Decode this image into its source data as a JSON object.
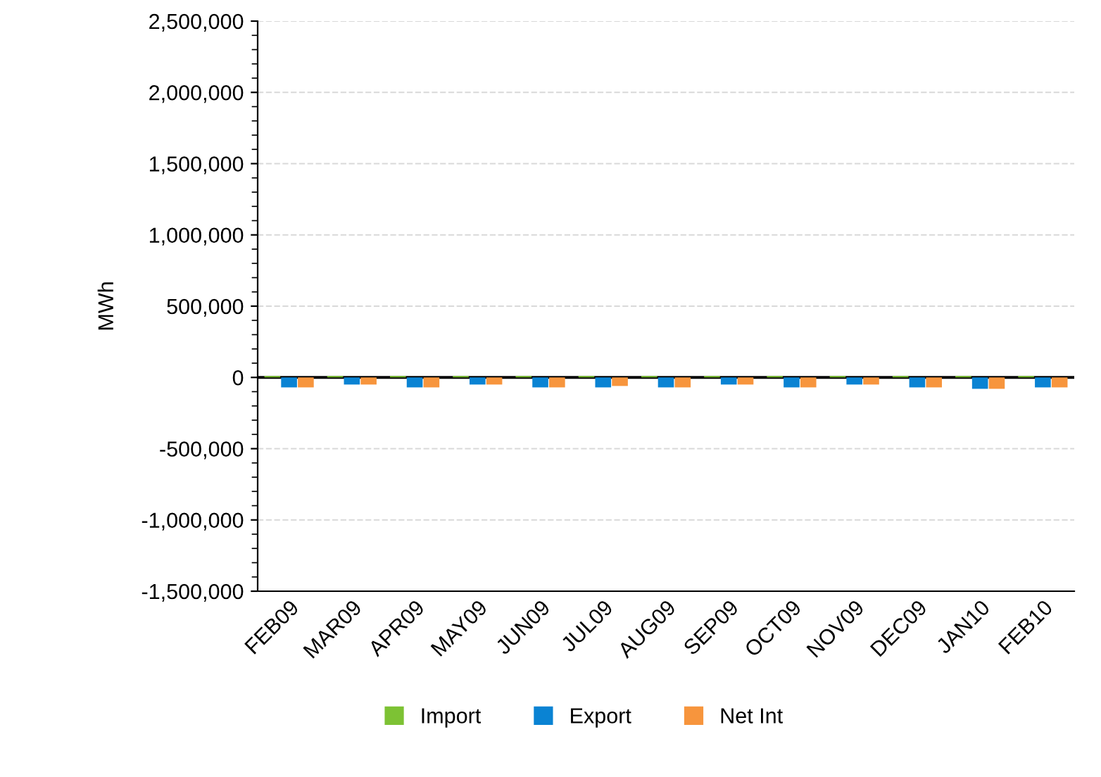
{
  "chart_data": {
    "type": "bar",
    "ylabel": "MWh",
    "categories": [
      "FEB09",
      "MAR09",
      "APR09",
      "MAY09",
      "JUN09",
      "JUL09",
      "AUG09",
      "SEP09",
      "OCT09",
      "NOV09",
      "DEC09",
      "JAN10",
      "FEB10"
    ],
    "series": [
      {
        "name": "Import",
        "color": "#7dc234",
        "values": [
          10000,
          10000,
          10000,
          10000,
          10000,
          10000,
          10000,
          10000,
          10000,
          10000,
          10000,
          10000,
          10000
        ]
      },
      {
        "name": "Export",
        "color": "#0a83d3",
        "values": [
          -70000,
          -50000,
          -70000,
          -50000,
          -70000,
          -70000,
          -70000,
          -50000,
          -70000,
          -50000,
          -70000,
          -80000,
          -70000
        ]
      },
      {
        "name": "Net Int",
        "color": "#f7953d",
        "values": [
          -70000,
          -50000,
          -70000,
          -50000,
          -70000,
          -60000,
          -70000,
          -50000,
          -70000,
          -50000,
          -70000,
          -80000,
          -70000
        ]
      }
    ],
    "ylim": [
      -1500000,
      2500000
    ],
    "yticks": [
      {
        "value": -1500000,
        "label": "-1,500,000"
      },
      {
        "value": -1000000,
        "label": "-1,000,000"
      },
      {
        "value": -500000,
        "label": "-500,000"
      },
      0,
      {
        "value": 500000,
        "label": "500,000"
      },
      {
        "value": 1000000,
        "label": "1,000,000"
      },
      {
        "value": 1500000,
        "label": "1,500,000"
      },
      {
        "value": 2000000,
        "label": "2,000,000"
      },
      {
        "value": 2500000,
        "label": "2,500,000"
      }
    ],
    "ref_lines": [
      {
        "axis": "y",
        "value": 0,
        "color": "#000000",
        "line_style": "solid"
      }
    ],
    "grid": "y",
    "legend": "bottom"
  }
}
